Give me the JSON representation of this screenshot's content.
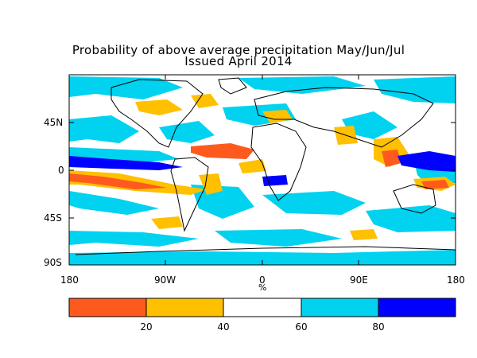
{
  "title": {
    "line1": "Probability of above average precipitation May/Jun/Jul",
    "line2": "Issued April 2014"
  },
  "axes": {
    "lat_labels": [
      "45N",
      "0",
      "45S",
      "90S"
    ],
    "lon_labels": [
      "180",
      "90W",
      "0",
      "90E",
      "180"
    ],
    "unit": "%"
  },
  "colorbar": {
    "colors": [
      "#ff5a1e",
      "#ffc000",
      "#ffffff",
      "#00d2f0",
      "#0000ff"
    ],
    "tick_labels": [
      "20",
      "40",
      "60",
      "80"
    ]
  },
  "colors": {
    "ocean_background": "#ffffff",
    "coast": "#000000",
    "low_strong": "#ff5a1e",
    "low": "#ffc000",
    "high": "#00d2f0",
    "high_strong": "#0000ff"
  }
}
